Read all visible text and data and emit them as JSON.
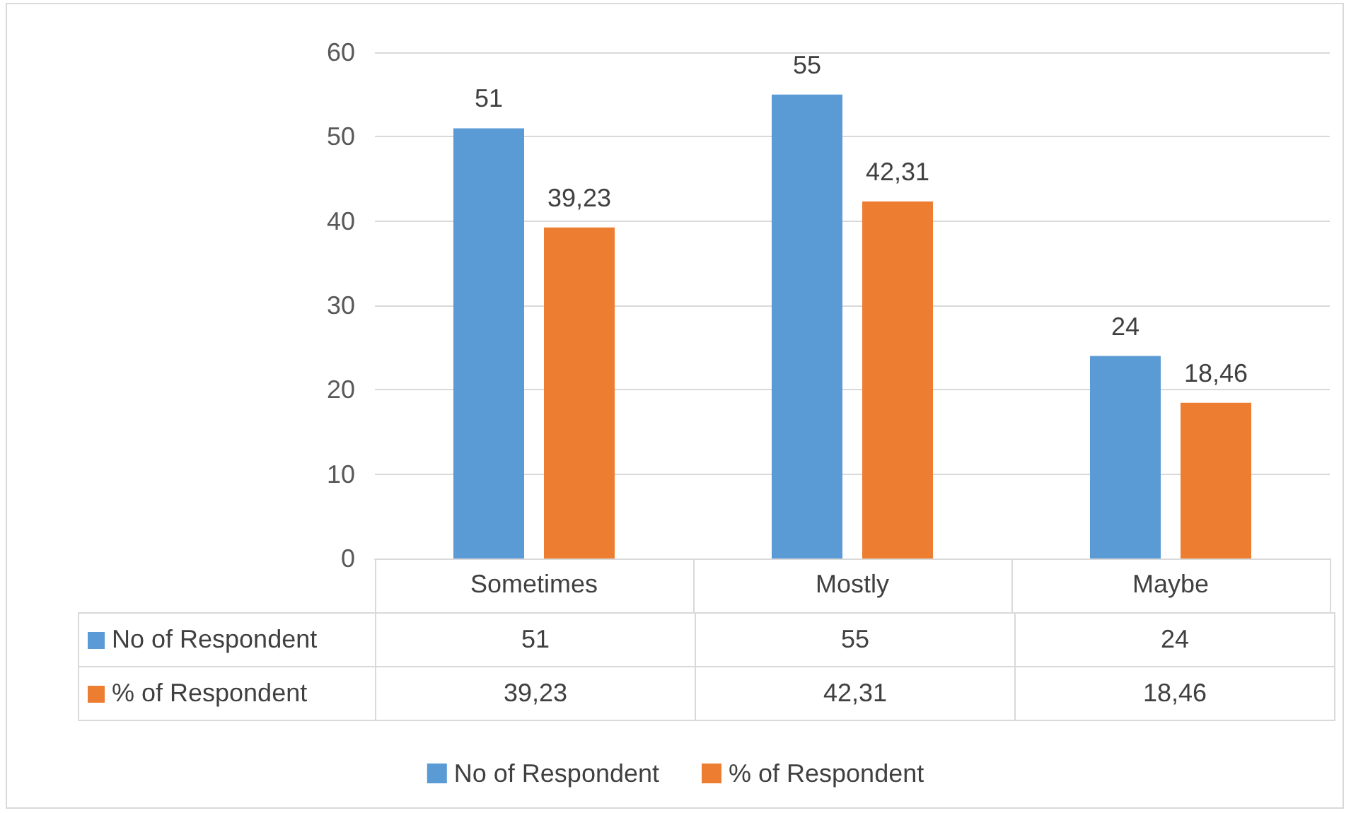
{
  "chart_data": {
    "type": "bar",
    "categories": [
      "Sometimes",
      "Mostly",
      "Maybe"
    ],
    "series": [
      {
        "name": "No of Respondent",
        "color": "#5b9bd5",
        "values": [
          51,
          55,
          24
        ],
        "value_labels": [
          "51",
          "55",
          "24"
        ]
      },
      {
        "name": "% of Respondent",
        "color": "#ed7d31",
        "values": [
          39.23,
          42.31,
          18.46
        ],
        "value_labels": [
          "39,23",
          "42,31",
          "18,46"
        ]
      }
    ],
    "ylim": [
      0,
      60
    ],
    "yticks": [
      0,
      10,
      20,
      30,
      40,
      50,
      60
    ],
    "grid": "y",
    "legend": "bottom"
  }
}
